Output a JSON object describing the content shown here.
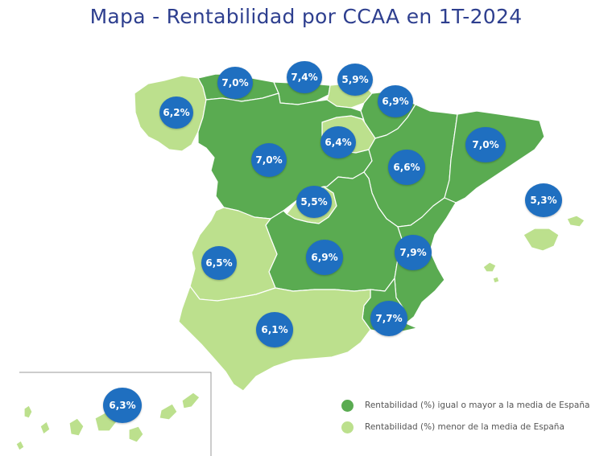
{
  "title": "Mapa - Rentabilidad por CCAA en 1T-2024",
  "colors": {
    "above_or_equal": "#5aab51",
    "below": "#bce08d",
    "badge": "#1f6fc0",
    "title": "#2e3f8f"
  },
  "regions": [
    {
      "id": "galicia",
      "value": "6,2%",
      "group": "below"
    },
    {
      "id": "asturias",
      "value": "7,0%",
      "group": "above_or_equal"
    },
    {
      "id": "cantabria",
      "value": "7,4%",
      "group": "above_or_equal"
    },
    {
      "id": "pais-vasco",
      "value": "5,9%",
      "group": "below"
    },
    {
      "id": "navarra",
      "value": "6,9%",
      "group": "above_or_equal"
    },
    {
      "id": "la-rioja",
      "value": "6,4%",
      "group": "below"
    },
    {
      "id": "castilla-y-leon",
      "value": "7,0%",
      "group": "above_or_equal"
    },
    {
      "id": "aragon",
      "value": "6,6%",
      "group": "above_or_equal"
    },
    {
      "id": "cataluna",
      "value": "7,0%",
      "group": "above_or_equal"
    },
    {
      "id": "baleares",
      "value": "5,3%",
      "group": "below"
    },
    {
      "id": "madrid",
      "value": "5,5%",
      "group": "below"
    },
    {
      "id": "extremadura",
      "value": "6,5%",
      "group": "below"
    },
    {
      "id": "castilla-la-mancha",
      "value": "6,9%",
      "group": "above_or_equal"
    },
    {
      "id": "comunidad-valenciana",
      "value": "7,9%",
      "group": "above_or_equal"
    },
    {
      "id": "murcia",
      "value": "7,7%",
      "group": "above_or_equal"
    },
    {
      "id": "andalucia",
      "value": "6,1%",
      "group": "below"
    },
    {
      "id": "canarias",
      "value": "6,3%",
      "group": "below"
    }
  ],
  "legend": [
    {
      "label": "Rentabilidad (%) igual o mayor a la media de España",
      "group": "above_or_equal"
    },
    {
      "label": "Rentabilidad (%) menor de la media de España",
      "group": "below"
    }
  ]
}
